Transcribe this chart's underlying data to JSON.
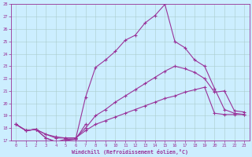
{
  "xlabel": "Windchill (Refroidissement éolien,°C)",
  "bg_color": "#cceeff",
  "line_color": "#993399",
  "grid_color": "#aacccc",
  "xlim": [
    -0.5,
    23.5
  ],
  "ylim": [
    17,
    28
  ],
  "xticks": [
    0,
    1,
    2,
    3,
    4,
    5,
    6,
    7,
    8,
    9,
    10,
    11,
    12,
    13,
    14,
    15,
    16,
    17,
    18,
    19,
    20,
    21,
    22,
    23
  ],
  "yticks": [
    17,
    18,
    19,
    20,
    21,
    22,
    23,
    24,
    25,
    26,
    27,
    28
  ],
  "lines": [
    {
      "x": [
        0,
        1,
        2,
        3,
        4,
        5,
        6,
        7,
        8,
        9,
        10,
        11,
        12,
        13,
        14,
        15,
        16,
        17,
        18,
        19,
        20,
        21,
        22,
        23
      ],
      "y": [
        18.3,
        17.8,
        17.9,
        17.2,
        16.9,
        17.0,
        17.1,
        20.5,
        22.9,
        23.5,
        24.2,
        25.1,
        25.5,
        26.5,
        27.1,
        28.0,
        25.0,
        24.5,
        23.5,
        23.0,
        21.2,
        19.5,
        19.2,
        19.1
      ]
    },
    {
      "x": [
        0,
        1,
        2,
        3,
        4,
        5,
        6,
        7,
        8,
        9,
        10,
        11,
        12,
        13,
        14,
        15,
        16,
        17,
        18,
        19,
        20,
        21,
        22,
        23
      ],
      "y": [
        18.3,
        17.8,
        17.9,
        17.5,
        17.2,
        17.2,
        17.2,
        18.0,
        19.0,
        19.5,
        20.1,
        20.6,
        21.1,
        21.6,
        22.1,
        22.6,
        23.0,
        22.8,
        22.5,
        22.0,
        20.9,
        21.0,
        19.4,
        19.3
      ]
    },
    {
      "x": [
        0,
        1,
        2,
        3,
        4,
        5,
        6,
        7
      ],
      "y": [
        18.3,
        17.8,
        17.9,
        17.2,
        16.9,
        17.1,
        17.1,
        18.3
      ]
    },
    {
      "x": [
        0,
        1,
        2,
        3,
        4,
        5,
        6,
        7,
        8,
        9,
        10,
        11,
        12,
        13,
        14,
        15,
        16,
        17,
        18,
        19,
        20,
        21,
        22,
        23
      ],
      "y": [
        18.3,
        17.8,
        17.9,
        17.5,
        17.3,
        17.2,
        17.2,
        17.8,
        18.3,
        18.6,
        18.9,
        19.2,
        19.5,
        19.8,
        20.1,
        20.4,
        20.6,
        20.9,
        21.1,
        21.3,
        19.2,
        19.1,
        19.1,
        19.1
      ]
    }
  ]
}
